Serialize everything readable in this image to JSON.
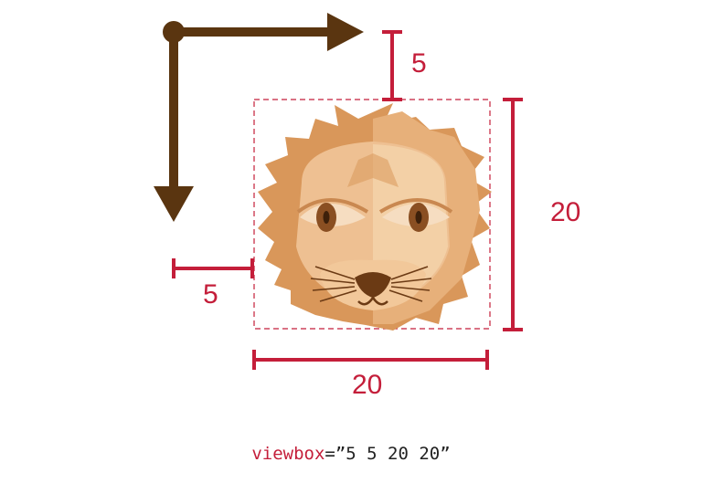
{
  "diagram": {
    "top_offset_label": "5",
    "left_offset_label": "5",
    "height_label": "20",
    "width_label": "20",
    "viewbox_code": {
      "attribute": "viewbox",
      "equals": "=",
      "value": "”5 5 20 20”"
    }
  },
  "colors": {
    "dimension": "#c41e3a",
    "axis": "#5a3510",
    "fur_light": "#f3d0a6",
    "fur_mid": "#e7b07a",
    "fur_dark": "#d9975a",
    "nose": "#6b3a14"
  }
}
